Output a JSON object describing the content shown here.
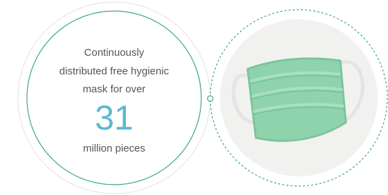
{
  "text": {
    "lines": [
      "Continuously",
      "distributed free hygienic",
      "mask for over"
    ],
    "number": 31,
    "unit": "million pieces"
  }
}
